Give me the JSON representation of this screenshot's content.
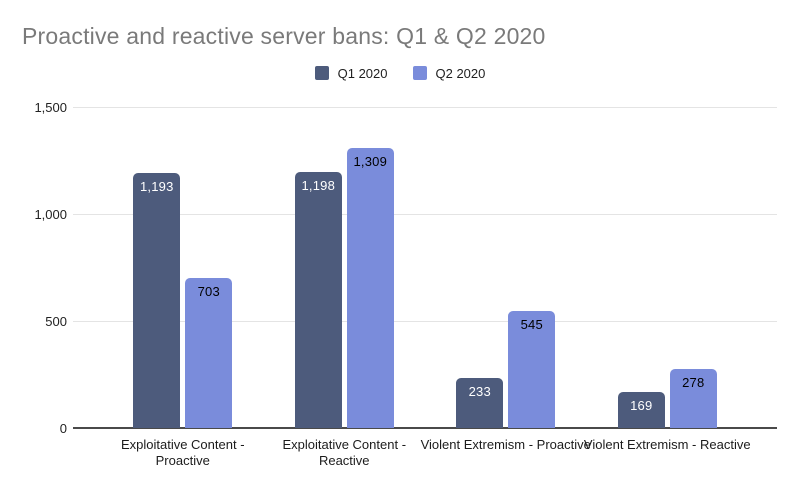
{
  "chart_data": {
    "type": "bar",
    "title": "Proactive and reactive server bans: Q1 & Q2 2020",
    "categories": [
      "Exploitative Content - Proactive",
      "Exploitative Content - Reactive",
      "Violent Extremism - Proactive",
      "Violent Extremism - Reactive"
    ],
    "series": [
      {
        "name": "Q1 2020",
        "color": "#4d5b7c",
        "label_color": "#ffffff",
        "values": [
          1193,
          1198,
          233,
          169
        ],
        "labels": [
          "1,193",
          "1,198",
          "233",
          "169"
        ]
      },
      {
        "name": "Q2 2020",
        "color": "#7a8cdb",
        "label_color": "#000000",
        "values": [
          703,
          1309,
          545,
          278
        ],
        "labels": [
          "703",
          "1,309",
          "545",
          "278"
        ]
      }
    ],
    "ylim": [
      0,
      1500
    ],
    "yticks": [
      {
        "value": 0,
        "label": "0"
      },
      {
        "value": 500,
        "label": "500"
      },
      {
        "value": 1000,
        "label": "1,000"
      },
      {
        "value": 1500,
        "label": "1,500"
      }
    ],
    "grid": true,
    "legend_position": "top",
    "title_color": "#7a7a7a",
    "axis_color": "#4a4a4a",
    "gridline_color": "#e4e4e4"
  }
}
